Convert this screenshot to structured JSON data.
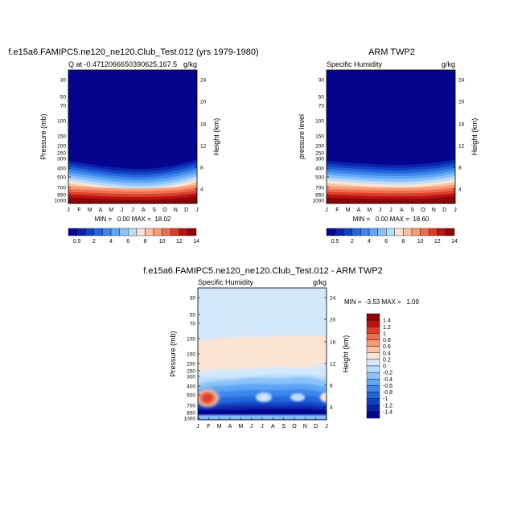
{
  "chart_data": [
    {
      "type": "heatmap",
      "title": "f.e15a6.FAMIPC5.ne120_ne120.Club_Test.012 (yrs 1979-1980)",
      "subtitle_left": "Q at -0.4712066650390625,167.5",
      "units": "g/kg",
      "xlabel": "",
      "ylabel": "Pressure (mb)",
      "ylabel_right": "Height (km)",
      "x_ticks": [
        "J",
        "F",
        "M",
        "A",
        "M",
        "J",
        "J",
        "A",
        "S",
        "O",
        "N",
        "D",
        "J"
      ],
      "y_ticks": [
        "30",
        "50",
        "70",
        "100",
        "150",
        "200",
        "250",
        "300",
        "400",
        "500",
        "700",
        "850",
        "1000"
      ],
      "y_ticks_right": [
        "24",
        "20",
        "16",
        "12",
        "8",
        "4"
      ],
      "stats": "MIN =   0.00 MAX =  18.02",
      "colorbar_labels": [
        "0.5",
        "2",
        "4",
        "6",
        "8",
        "10",
        "12",
        "14"
      ],
      "max_value": 18.02
    },
    {
      "type": "heatmap",
      "title": "ARM TWP2",
      "subtitle_left": "Specific Humidity",
      "units": "g/kg",
      "xlabel": "",
      "ylabel": "pressure level",
      "ylabel_right": "Height (km)",
      "x_ticks": [
        "J",
        "F",
        "M",
        "A",
        "M",
        "J",
        "J",
        "A",
        "S",
        "O",
        "N",
        "D",
        "J"
      ],
      "y_ticks": [
        "30",
        "50",
        "70",
        "100",
        "150",
        "200",
        "250",
        "300",
        "400",
        "500",
        "700",
        "850",
        "1000"
      ],
      "y_ticks_right": [
        "24",
        "20",
        "16",
        "12",
        "8",
        "4"
      ],
      "stats": "MIN =   0.00 MAX =  18.60",
      "colorbar_labels": [
        "0.5",
        "2",
        "4",
        "6",
        "8",
        "10",
        "12",
        "14"
      ],
      "max_value": 18.6
    },
    {
      "type": "heatmap",
      "title": "f.e15a6.FAMIPC5.ne120_ne120.Club_Test.012 - ARM TWP2",
      "subtitle_left": "Specific Humidity",
      "units": "g/kg",
      "xlabel": "",
      "ylabel": "Pressure (mb)",
      "ylabel_right": "Height (km)",
      "x_ticks": [
        "J",
        "F",
        "M",
        "A",
        "M",
        "J",
        "J",
        "A",
        "S",
        "O",
        "N",
        "D",
        "J"
      ],
      "y_ticks": [
        "30",
        "50",
        "70",
        "100",
        "150",
        "200",
        "250",
        "300",
        "400",
        "500",
        "700",
        "850",
        "1000"
      ],
      "y_ticks_right": [
        "24",
        "20",
        "16",
        "12",
        "8",
        "4"
      ],
      "stats": "MIN =  -3.53 MAX =   1.09",
      "colorbar_labels": [
        "1.4",
        "1.2",
        "1",
        "0.8",
        "0.6",
        "0.4",
        "0.2",
        "0",
        "-0.2",
        "-0.4",
        "-0.6",
        "-0.8",
        "-1",
        "-1.2",
        "-1.4"
      ],
      "min_value": -3.53,
      "max_value": 1.09
    }
  ],
  "colors": {
    "humidity_scale": [
      "#05048f",
      "#0a23a8",
      "#1242c4",
      "#2366dc",
      "#3e86ec",
      "#5ea6f6",
      "#8cc2fb",
      "#bcdcfd",
      "#fbe3d2",
      "#fbc2a4",
      "#f79a76",
      "#ee6d4d",
      "#dd3d2b",
      "#b81512",
      "#8e0505"
    ],
    "difference_scale": [
      "#8e0505",
      "#b81512",
      "#dd3d2b",
      "#ee6d4d",
      "#f79a76",
      "#fbc2a4",
      "#fbe3d2",
      "#d4e8fb",
      "#bcdcfd",
      "#8cc2fb",
      "#5ea6f6",
      "#3e86ec",
      "#2366dc",
      "#1242c4",
      "#0a23a8",
      "#05048f"
    ]
  }
}
